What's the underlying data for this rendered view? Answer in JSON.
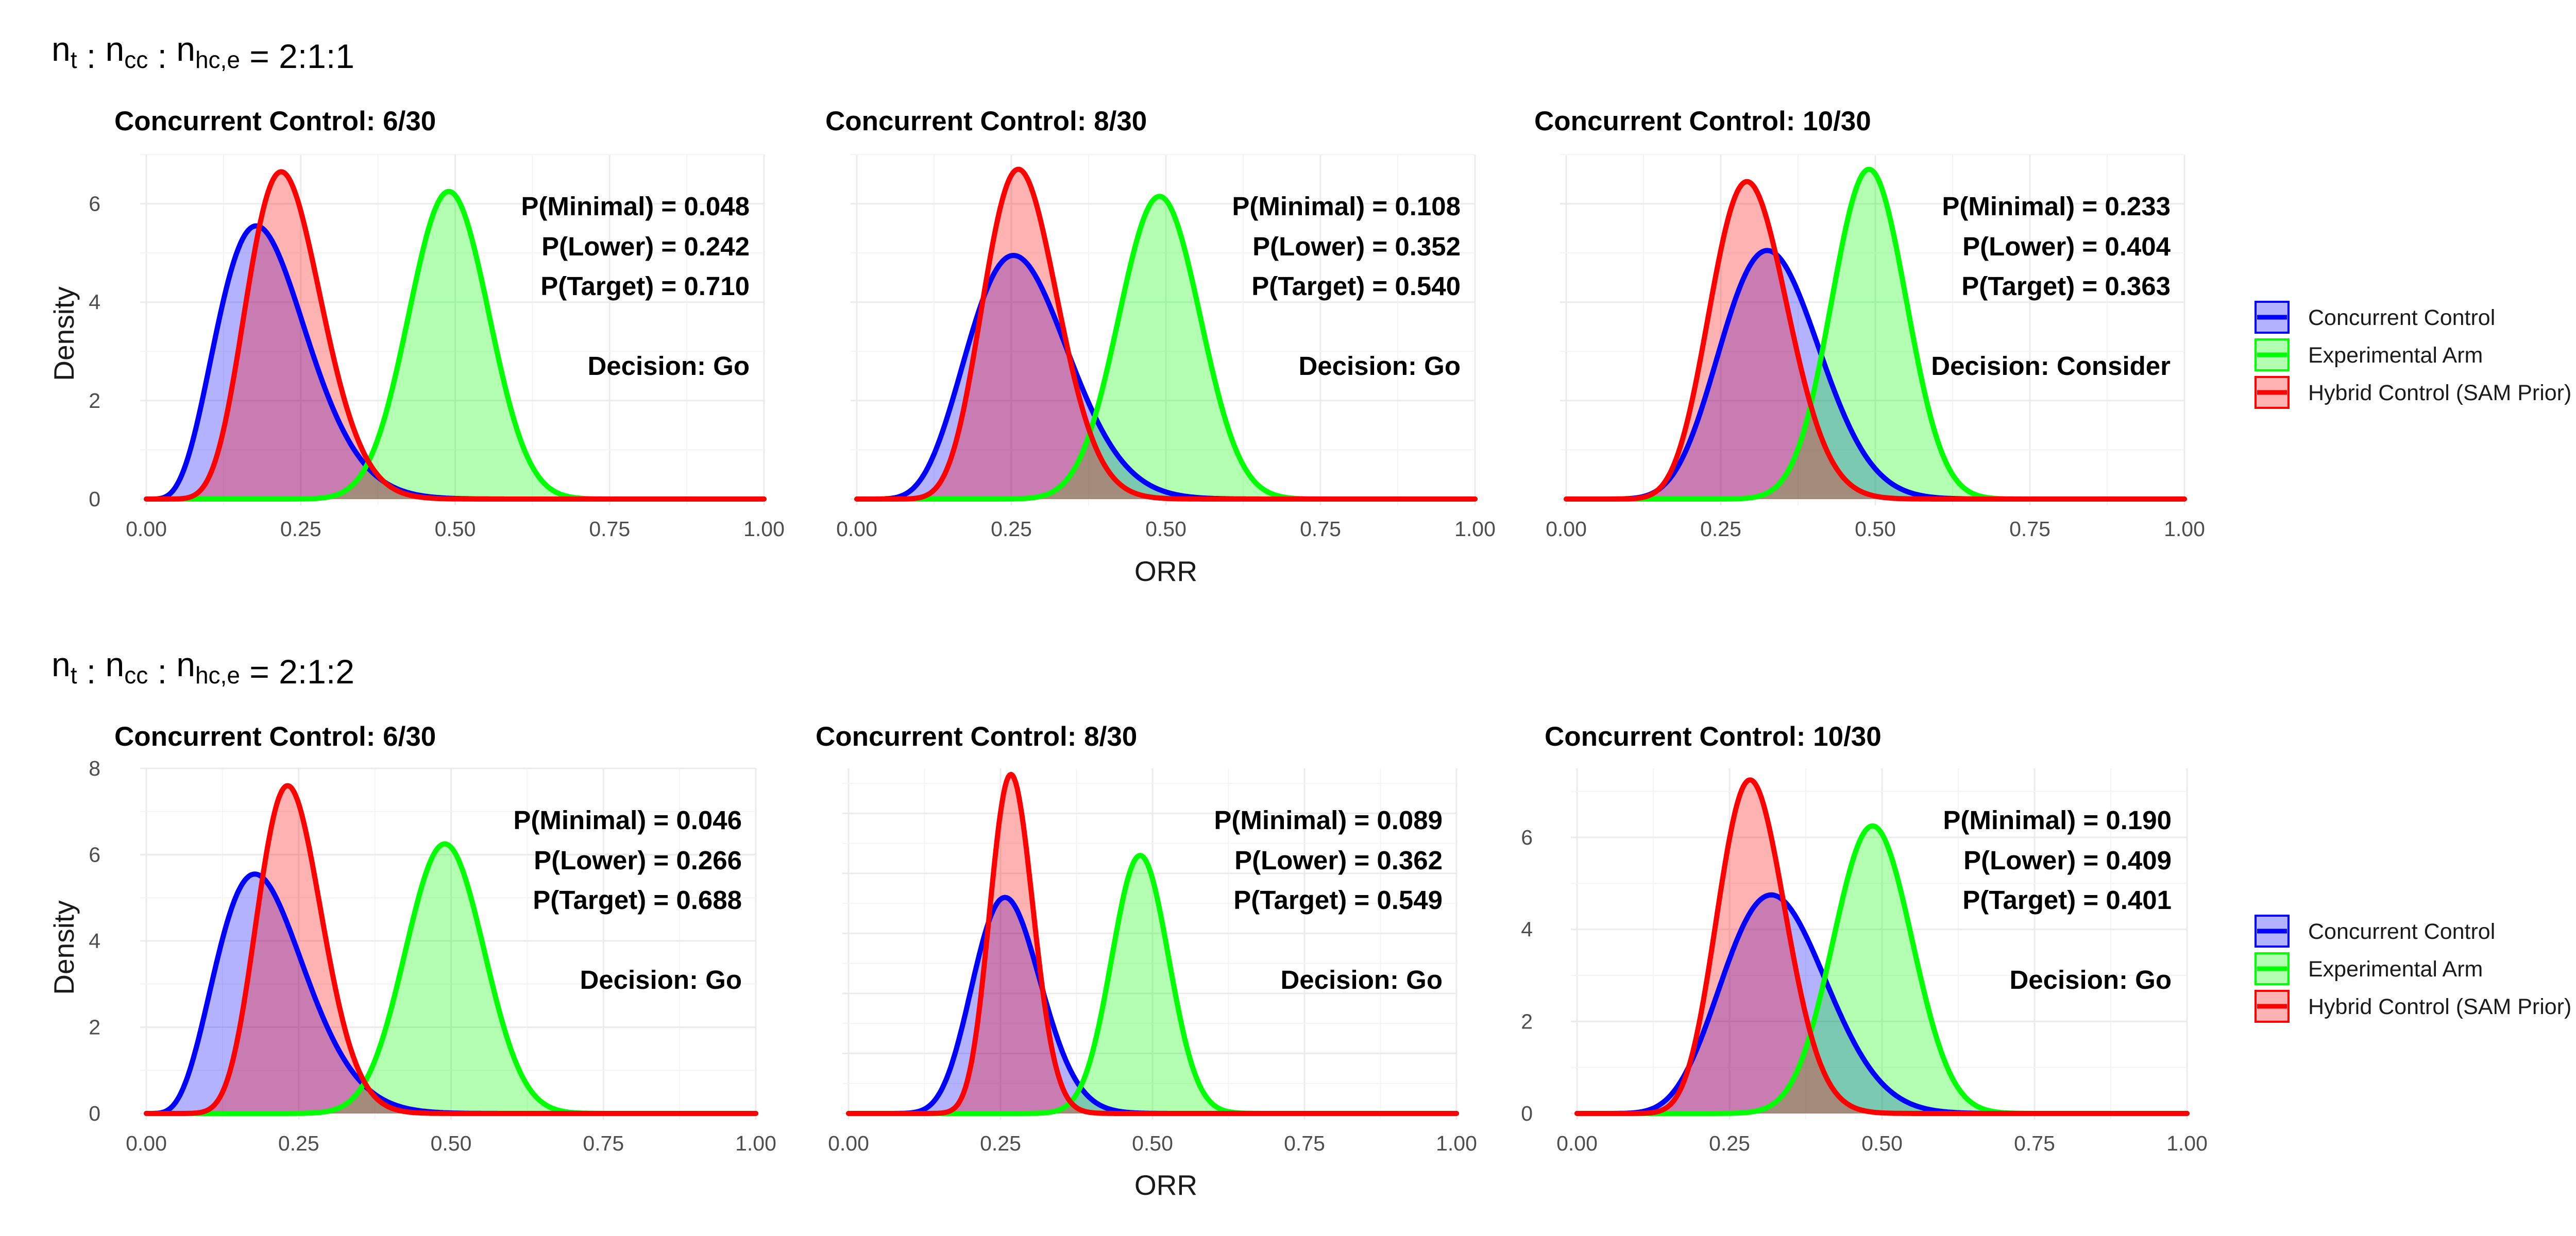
{
  "figure": {
    "rows": [
      {
        "title_main": "n",
        "parts": [
          [
            "n",
            "t"
          ],
          [
            "n",
            "cc"
          ],
          [
            "n",
            "hc,e"
          ]
        ],
        "ratio": "2:1:1"
      },
      {
        "title_main": "n",
        "parts": [
          [
            "n",
            "t"
          ],
          [
            "n",
            "cc"
          ],
          [
            "n",
            "hc,e"
          ]
        ],
        "ratio": "2:1:2"
      }
    ],
    "xlabel": "ORR",
    "ylabel": "Density",
    "legend": [
      {
        "name": "Concurrent Control",
        "color": "#0000ff"
      },
      {
        "name": "Experimental Arm",
        "color": "#00ff00"
      },
      {
        "name": "Hybrid Control (SAM Prior)",
        "color": "#ff0000"
      }
    ]
  },
  "chart_data": [
    {
      "type": "area",
      "row": 0,
      "title": "Concurrent Control: 6/30",
      "xlim": [
        0,
        1
      ],
      "ylim": [
        0,
        7
      ],
      "yticks": [
        0,
        2,
        4,
        6
      ],
      "xticks": [
        "0.00",
        "0.25",
        "0.50",
        "0.75",
        "1.00"
      ],
      "series": [
        {
          "name": "Concurrent Control",
          "dist": "beta",
          "mean": 0.2,
          "peak": 5.55,
          "color": "#0000ff",
          "fill": "#0000ff"
        },
        {
          "name": "Experimental Arm",
          "dist": "beta",
          "mean": 0.49,
          "peak": 6.25,
          "color": "#00ff00",
          "fill": "#00ff00"
        },
        {
          "name": "Hybrid Control (SAM Prior)",
          "dist": "beta",
          "mean": 0.23,
          "peak": 6.65,
          "color": "#ff0000",
          "fill": "#ff0000"
        }
      ],
      "annotations": [
        "P(Minimal) = 0.048",
        "P(Lower) = 0.242",
        "P(Target) = 0.710",
        "Decision: Go"
      ]
    },
    {
      "type": "area",
      "row": 0,
      "title": "Concurrent Control: 8/30",
      "xlim": [
        0,
        1
      ],
      "ylim": [
        0,
        7
      ],
      "yticks": [
        0,
        2,
        4,
        6
      ],
      "xticks": [
        "0.00",
        "0.25",
        "0.50",
        "0.75",
        "1.00"
      ],
      "series": [
        {
          "name": "Concurrent Control",
          "dist": "beta",
          "mean": 0.27,
          "peak": 4.95,
          "color": "#0000ff",
          "fill": "#0000ff"
        },
        {
          "name": "Experimental Arm",
          "dist": "beta",
          "mean": 0.49,
          "peak": 6.15,
          "color": "#00ff00",
          "fill": "#00ff00"
        },
        {
          "name": "Hybrid Control (SAM Prior)",
          "dist": "beta",
          "mean": 0.27,
          "peak": 6.7,
          "color": "#ff0000",
          "fill": "#ff0000"
        }
      ],
      "annotations": [
        "P(Minimal) = 0.108",
        "P(Lower) = 0.352",
        "P(Target) = 0.540",
        "Decision: Go"
      ]
    },
    {
      "type": "area",
      "row": 0,
      "title": "Concurrent Control: 10/30",
      "xlim": [
        0,
        1
      ],
      "ylim": [
        0,
        7
      ],
      "yticks": [
        0,
        2,
        4,
        6
      ],
      "xticks": [
        "0.00",
        "0.25",
        "0.50",
        "0.75",
        "1.00"
      ],
      "series": [
        {
          "name": "Concurrent Control",
          "dist": "beta",
          "mean": 0.335,
          "peak": 5.05,
          "color": "#0000ff",
          "fill": "#0000ff"
        },
        {
          "name": "Experimental Arm",
          "dist": "beta",
          "mean": 0.49,
          "peak": 6.7,
          "color": "#00ff00",
          "fill": "#00ff00"
        },
        {
          "name": "Hybrid Control (SAM Prior)",
          "dist": "beta",
          "mean": 0.3,
          "peak": 6.45,
          "color": "#ff0000",
          "fill": "#ff0000"
        }
      ],
      "annotations": [
        "P(Minimal) = 0.233",
        "P(Lower) = 0.404",
        "P(Target) = 0.363",
        "Decision: Consider"
      ]
    },
    {
      "type": "area",
      "row": 1,
      "title": "Concurrent Control: 6/30",
      "xlim": [
        0,
        1
      ],
      "ylim": [
        0,
        8
      ],
      "yticks": [
        0,
        2,
        4,
        6,
        8
      ],
      "xticks": [
        "0.00",
        "0.25",
        "0.50",
        "0.75",
        "1.00"
      ],
      "series": [
        {
          "name": "Concurrent Control",
          "dist": "beta",
          "mean": 0.2,
          "peak": 5.55,
          "color": "#0000ff",
          "fill": "#0000ff"
        },
        {
          "name": "Experimental Arm",
          "dist": "beta",
          "mean": 0.49,
          "peak": 6.25,
          "color": "#00ff00",
          "fill": "#00ff00"
        },
        {
          "name": "Hybrid Control (SAM Prior)",
          "dist": "beta",
          "mean": 0.24,
          "peak": 7.6,
          "color": "#ff0000",
          "fill": "#ff0000"
        }
      ],
      "annotations": [
        "P(Minimal) = 0.046",
        "P(Lower) = 0.266",
        "P(Target) = 0.688",
        "Decision: Go"
      ]
    },
    {
      "type": "area",
      "row": 1,
      "title": "Concurrent Control: 8/30",
      "xlim": [
        0,
        1
      ],
      "ylim": [
        0,
        11.5
      ],
      "yticks": [],
      "xticks": [
        "0.00",
        "0.25",
        "0.50",
        "0.75",
        "1.00"
      ],
      "series": [
        {
          "name": "Concurrent Control",
          "dist": "beta",
          "mean": 0.265,
          "peak": 7.2,
          "color": "#0000ff",
          "fill": "#0000ff"
        },
        {
          "name": "Experimental Arm",
          "dist": "beta",
          "mean": 0.48,
          "peak": 8.6,
          "color": "#00ff00",
          "fill": "#00ff00"
        },
        {
          "name": "Hybrid Control (SAM Prior)",
          "dist": "beta",
          "mean": 0.27,
          "peak": 11.3,
          "color": "#ff0000",
          "fill": "#ff0000"
        }
      ],
      "annotations": [
        "P(Minimal) = 0.089",
        "P(Lower) = 0.362",
        "P(Target) = 0.549",
        "Decision: Go"
      ]
    },
    {
      "type": "area",
      "row": 1,
      "title": "Concurrent Control: 10/30",
      "xlim": [
        0,
        1
      ],
      "ylim": [
        0,
        7.5
      ],
      "yticks": [
        0,
        2,
        4,
        6
      ],
      "xticks": [
        "0.00",
        "0.25",
        "0.50",
        "0.75",
        "1.00"
      ],
      "series": [
        {
          "name": "Concurrent Control",
          "dist": "beta",
          "mean": 0.33,
          "peak": 4.75,
          "color": "#0000ff",
          "fill": "#0000ff"
        },
        {
          "name": "Experimental Arm",
          "dist": "beta",
          "mean": 0.485,
          "peak": 6.25,
          "color": "#00ff00",
          "fill": "#00ff00"
        },
        {
          "name": "Hybrid Control (SAM Prior)",
          "dist": "beta",
          "mean": 0.29,
          "peak": 7.25,
          "color": "#ff0000",
          "fill": "#ff0000"
        }
      ],
      "annotations": [
        "P(Minimal) = 0.190",
        "P(Lower) = 0.409",
        "P(Target) = 0.401",
        "Decision: Go"
      ]
    }
  ]
}
